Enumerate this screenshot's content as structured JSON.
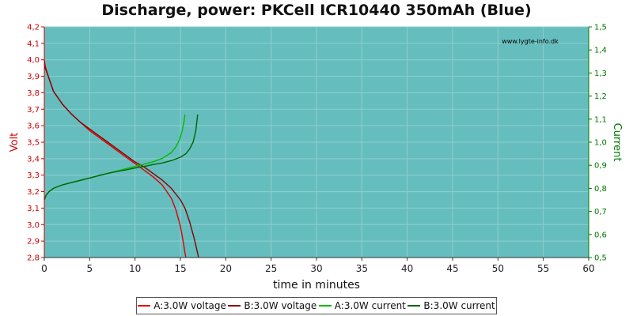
{
  "chart_data": {
    "type": "line",
    "title": "Discharge, power: PKCell ICR10440 350mAh (Blue)",
    "watermark": "www.lygte-info.dk",
    "xlabel": "time in minutes",
    "ylabel_left": "Volt",
    "ylabel_right": "Current",
    "xlim": [
      0,
      60
    ],
    "ylim_left": [
      2.8,
      4.2
    ],
    "ylim_right": [
      0.5,
      1.5
    ],
    "x_ticks": [
      "0",
      "5",
      "10",
      "15",
      "20",
      "25",
      "30",
      "35",
      "40",
      "45",
      "50",
      "55",
      "60"
    ],
    "y_left_ticks": [
      "2,8",
      "2,9",
      "3,0",
      "3,1",
      "3,2",
      "3,3",
      "3,4",
      "3,5",
      "3,6",
      "3,7",
      "3,8",
      "3,9",
      "4,0",
      "4,1",
      "4,2"
    ],
    "y_right_ticks": [
      "0,5",
      "0,6",
      "0,7",
      "0,8",
      "0,9",
      "1,0",
      "1,1",
      "1,2",
      "1,3",
      "1,4",
      "1,5"
    ],
    "grid": true,
    "legend_position": "bottom",
    "colors": {
      "plot_bg": "#66bdbd",
      "grid": "#8fcfcf",
      "left_axis": "#cc0000",
      "right_axis": "#007700"
    },
    "series": [
      {
        "name": "A:3.0W voltage",
        "axis": "left",
        "color": "#dd0000",
        "x": [
          0,
          0.1,
          0.5,
          1,
          2,
          3,
          4,
          5,
          6,
          7,
          8,
          9,
          10,
          11,
          12,
          13,
          14,
          14.5,
          15,
          15.3,
          15.5,
          15.6
        ],
        "y": [
          4.0,
          3.96,
          3.89,
          3.81,
          3.73,
          3.67,
          3.62,
          3.57,
          3.53,
          3.49,
          3.45,
          3.41,
          3.37,
          3.33,
          3.29,
          3.24,
          3.16,
          3.09,
          2.99,
          2.9,
          2.83,
          2.8
        ]
      },
      {
        "name": "B:3.0W voltage",
        "axis": "left",
        "color": "#880000",
        "x": [
          0,
          0.1,
          0.5,
          1,
          2,
          3,
          4,
          5,
          6,
          7,
          8,
          9,
          10,
          11,
          12,
          13,
          14,
          15,
          15.5,
          16,
          16.5,
          16.8,
          17
        ],
        "y": [
          3.99,
          3.95,
          3.89,
          3.81,
          3.73,
          3.67,
          3.62,
          3.58,
          3.54,
          3.5,
          3.46,
          3.42,
          3.38,
          3.35,
          3.31,
          3.27,
          3.22,
          3.15,
          3.1,
          3.02,
          2.92,
          2.85,
          2.8
        ]
      },
      {
        "name": "A:3.0W current",
        "axis": "right",
        "color": "#00bb00",
        "x": [
          0,
          0.2,
          0.5,
          1,
          2,
          3,
          4,
          5,
          6,
          7,
          8,
          9,
          10,
          11,
          12,
          13,
          14,
          14.5,
          14.9,
          15.2,
          15.4,
          15.5
        ],
        "y": [
          0.75,
          0.77,
          0.785,
          0.8,
          0.815,
          0.825,
          0.835,
          0.845,
          0.855,
          0.865,
          0.875,
          0.885,
          0.895,
          0.905,
          0.915,
          0.93,
          0.955,
          0.98,
          1.01,
          1.05,
          1.09,
          1.12
        ]
      },
      {
        "name": "B:3.0W current",
        "axis": "right",
        "color": "#006600",
        "x": [
          0,
          0.2,
          0.5,
          1,
          2,
          3,
          4,
          5,
          6,
          7,
          8,
          9,
          10,
          11,
          12,
          13,
          14,
          15,
          15.6,
          16,
          16.4,
          16.7,
          16.9
        ],
        "y": [
          0.75,
          0.77,
          0.785,
          0.8,
          0.815,
          0.825,
          0.835,
          0.845,
          0.855,
          0.865,
          0.873,
          0.88,
          0.888,
          0.895,
          0.903,
          0.91,
          0.92,
          0.935,
          0.95,
          0.97,
          1.0,
          1.05,
          1.12
        ]
      }
    ]
  }
}
